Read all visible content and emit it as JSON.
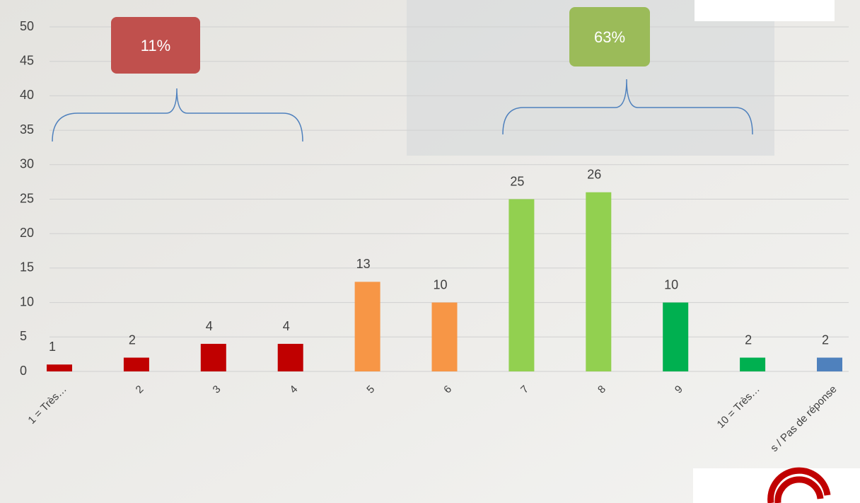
{
  "chart_data": {
    "type": "bar",
    "categories": [
      "1 = Très…",
      "2",
      "3",
      "4",
      "5",
      "6",
      "7",
      "8",
      "9",
      "10 = Très…",
      "s / Pas de réponse"
    ],
    "values": [
      1,
      2,
      4,
      4,
      13,
      10,
      25,
      26,
      10,
      2,
      2
    ],
    "colors": [
      "#c00000",
      "#c00000",
      "#c00000",
      "#c00000",
      "#f79646",
      "#f79646",
      "#92d050",
      "#92d050",
      "#00b050",
      "#00b050",
      "#4f81bd"
    ],
    "ylim": [
      0,
      50
    ],
    "yticks": [
      0,
      5,
      10,
      15,
      20,
      25,
      30,
      35,
      40,
      45,
      50
    ],
    "grid": true,
    "annotations": [
      "11%",
      "63%"
    ]
  }
}
